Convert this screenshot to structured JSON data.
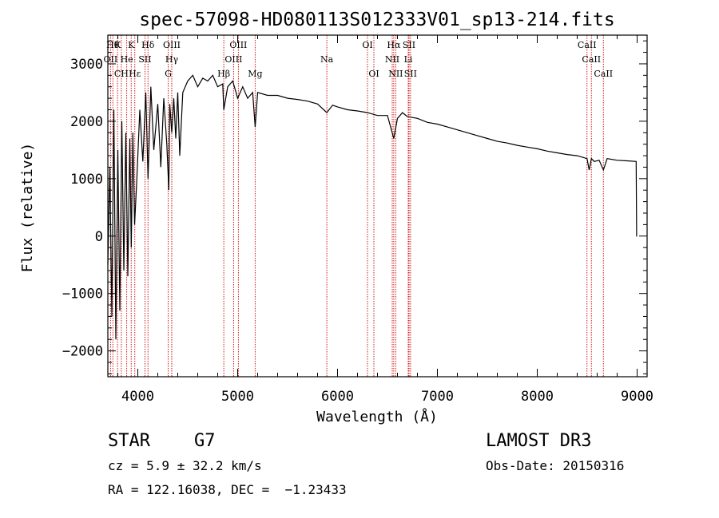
{
  "chart_data": {
    "type": "line",
    "title": "spec-57098-HD080113S012333V01_sp13-214.fits",
    "xlabel": "Wavelength (Å)",
    "ylabel": "Flux (relative)",
    "xlim": [
      3700,
      9100
    ],
    "ylim": [
      -2450,
      3500
    ],
    "xticks": [
      4000,
      5000,
      6000,
      7000,
      8000,
      9000
    ],
    "xtick_labels": [
      "4000",
      "5000",
      "6000",
      "7000",
      "8000",
      "9000"
    ],
    "yticks": [
      -2000,
      -1000,
      0,
      1000,
      2000,
      3000
    ],
    "ytick_labels": [
      "−2000",
      "−1000",
      "0",
      "1000",
      "2000",
      "3000"
    ],
    "series": [
      {
        "name": "spectrum",
        "x": [
          3700,
          3720,
          3740,
          3760,
          3780,
          3800,
          3820,
          3840,
          3860,
          3880,
          3900,
          3920,
          3934,
          3950,
          3968,
          3990,
          4020,
          4050,
          4080,
          4102,
          4130,
          4160,
          4200,
          4230,
          4260,
          4290,
          4310,
          4320,
          4340,
          4360,
          4380,
          4400,
          4420,
          4450,
          4500,
          4550,
          4600,
          4650,
          4700,
          4750,
          4800,
          4850,
          4861,
          4900,
          4950,
          5000,
          5050,
          5100,
          5150,
          5175,
          5200,
          5300,
          5400,
          5500,
          5600,
          5700,
          5800,
          5893,
          5950,
          6000,
          6100,
          6200,
          6300,
          6400,
          6500,
          6563,
          6600,
          6650,
          6700,
          6800,
          6900,
          7000,
          7100,
          7200,
          7300,
          7400,
          7500,
          7600,
          7700,
          7800,
          7900,
          8000,
          8100,
          8200,
          8300,
          8400,
          8498,
          8520,
          8542,
          8570,
          8620,
          8662,
          8700,
          8800,
          8900,
          8990,
          8995,
          9000
        ],
        "values": [
          -500,
          1200,
          -1400,
          2200,
          -1800,
          1500,
          -1300,
          2000,
          -600,
          1800,
          -700,
          1700,
          -200,
          1800,
          200,
          1000,
          2200,
          1300,
          2500,
          1000,
          2600,
          1500,
          2300,
          1200,
          2400,
          1600,
          800,
          2300,
          1800,
          2400,
          1700,
          2500,
          1400,
          2500,
          2700,
          2800,
          2600,
          2750,
          2700,
          2800,
          2600,
          2650,
          2200,
          2600,
          2700,
          2400,
          2600,
          2400,
          2500,
          1900,
          2500,
          2450,
          2450,
          2400,
          2380,
          2350,
          2300,
          2150,
          2280,
          2250,
          2200,
          2180,
          2150,
          2100,
          2100,
          1700,
          2050,
          2150,
          2080,
          2050,
          1980,
          1950,
          1900,
          1850,
          1800,
          1750,
          1700,
          1650,
          1620,
          1580,
          1550,
          1520,
          1480,
          1450,
          1420,
          1400,
          1350,
          1150,
          1350,
          1300,
          1320,
          1150,
          1350,
          1320,
          1310,
          1300,
          0,
          0
        ]
      }
    ],
    "line_markers": [
      {
        "wavelength": 3750,
        "label": "Hθ",
        "row": 0
      },
      {
        "wavelength": 3797,
        "label": "K",
        "row": 0
      },
      {
        "wavelength": 3934,
        "label": "K",
        "row": 0
      },
      {
        "wavelength": 4102,
        "label": "Hδ",
        "row": 0
      },
      {
        "wavelength": 4340,
        "label": "OIII",
        "row": 0
      },
      {
        "wavelength": 5007,
        "label": "OIII",
        "row": 0
      },
      {
        "wavelength": 6300,
        "label": "OI",
        "row": 0
      },
      {
        "wavelength": 6563,
        "label": "Hα",
        "row": 0
      },
      {
        "wavelength": 6716,
        "label": "SII",
        "row": 0
      },
      {
        "wavelength": 8498,
        "label": "CaII",
        "row": 0
      },
      {
        "wavelength": 3727,
        "label": "OII",
        "row": 1
      },
      {
        "wavelength": 3889,
        "label": "He",
        "row": 1
      },
      {
        "wavelength": 4072,
        "label": "SII",
        "row": 1
      },
      {
        "wavelength": 4340,
        "label": "Hγ",
        "row": 1
      },
      {
        "wavelength": 4959,
        "label": "OIII",
        "row": 1
      },
      {
        "wavelength": 5893,
        "label": "Na",
        "row": 1
      },
      {
        "wavelength": 6548,
        "label": "NII",
        "row": 1
      },
      {
        "wavelength": 6708,
        "label": "Li",
        "row": 1
      },
      {
        "wavelength": 8542,
        "label": "CaII",
        "row": 1
      },
      {
        "wavelength": 3835,
        "label": "CH",
        "row": 2
      },
      {
        "wavelength": 3970,
        "label": "Hε",
        "row": 2
      },
      {
        "wavelength": 4304,
        "label": "G",
        "row": 2
      },
      {
        "wavelength": 4861,
        "label": "Hβ",
        "row": 2
      },
      {
        "wavelength": 5175,
        "label": "Mg",
        "row": 2
      },
      {
        "wavelength": 6364,
        "label": "OI",
        "row": 2
      },
      {
        "wavelength": 6583,
        "label": "NII",
        "row": 2
      },
      {
        "wavelength": 6731,
        "label": "SII",
        "row": 2
      },
      {
        "wavelength": 8662,
        "label": "CaII",
        "row": 2
      }
    ],
    "colors": {
      "spectrum": "#000000",
      "markers": "#cc0000",
      "axes": "#000000"
    }
  },
  "info": {
    "object_class": "STAR",
    "subclass": "G7",
    "redshift_text": "cz = 5.9 ± 32.2 km/s",
    "coords_text": "RA = 122.16038, DEC =  −1.23433",
    "survey": "LAMOST DR3",
    "obs_date_text": "Obs-Date: 20150316"
  }
}
